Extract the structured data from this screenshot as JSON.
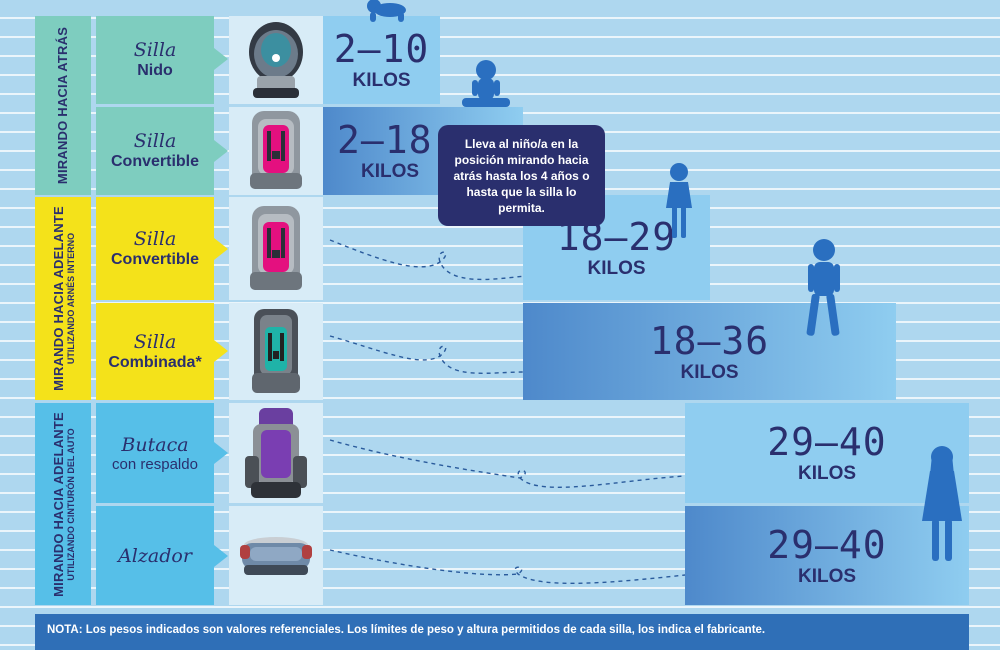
{
  "groups": [
    {
      "line1": "MIRANDO HACIA ATRÁS",
      "line2": ""
    },
    {
      "line1": "MIRANDO HACIA ADELANTE",
      "line2": "UTILIZANDO ARNÉS INTERNO"
    },
    {
      "line1": "MIRANDO HACIA ADELANTE",
      "line2": "UTILIZANDO CINTURÓN DEL AUTO"
    }
  ],
  "rows": [
    {
      "script": "Silla",
      "bold": "Nido",
      "range": "2–10",
      "unit": "KILOS"
    },
    {
      "script": "Silla",
      "bold": "Convertible",
      "range": "2–18",
      "unit": "KILOS"
    },
    {
      "script": "Silla",
      "bold": "Convertible",
      "range": "18–29",
      "unit": "KILOS"
    },
    {
      "script": "Silla",
      "bold": "Combinada*",
      "range": "18–36",
      "unit": "KILOS"
    },
    {
      "script": "Butaca",
      "regular": "con respaldo",
      "range": "29–40",
      "unit": "KILOS"
    },
    {
      "script": "Alzador",
      "range": "29–40",
      "unit": "KILOS"
    }
  ],
  "bubble": "Lleva al niño/a en la posición mirando hacia atrás hasta los 4 años o hasta que la silla lo permita.",
  "note": {
    "bold": "NOTA: Los pesos indicados son valores referenciales. Los límites de peso y altura permitidos de cada silla, los indica el fabricante."
  },
  "colors": {
    "teal": "#7ecdbf",
    "yellow": "#f4e21a",
    "cyan": "#56bfe8",
    "navy": "#2a2f6e",
    "silhouette": "#2a6fc0"
  }
}
